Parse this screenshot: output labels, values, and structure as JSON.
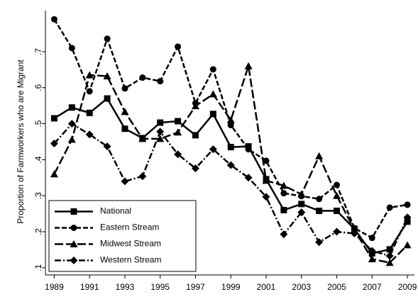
{
  "chart_data": {
    "type": "line",
    "y_label": "Proportion of Farmworkers who are Migrant",
    "x": [
      1989,
      1990,
      1991,
      1992,
      1993,
      1994,
      1995,
      1996,
      1997,
      1998,
      1999,
      2000,
      2001,
      2002,
      2003,
      2004,
      2005,
      2006,
      2007,
      2008,
      2009
    ],
    "xlim": [
      1988.5,
      2009.4
    ],
    "xticks": [
      1989,
      1991,
      1993,
      1995,
      1997,
      1999,
      2001,
      2003,
      2005,
      2007,
      2009
    ],
    "ylim": [
      0.08,
      0.814
    ],
    "yticks": [
      {
        "value": 0.1,
        "label": ".1"
      },
      {
        "value": 0.2,
        "label": ".2"
      },
      {
        "value": 0.3,
        "label": ".3"
      },
      {
        "value": 0.4,
        "label": ".4"
      },
      {
        "value": 0.5,
        "label": ".5"
      },
      {
        "value": 0.6,
        "label": ".6"
      },
      {
        "value": 0.7,
        "label": ".7"
      }
    ],
    "legend_position": "lower left",
    "series": [
      {
        "name": "National",
        "color": "#000000",
        "dash": "solid",
        "marker": "square",
        "values": [
          0.515,
          0.545,
          0.53,
          0.57,
          0.486,
          0.46,
          0.503,
          0.507,
          0.468,
          0.527,
          0.435,
          0.437,
          0.346,
          0.26,
          0.277,
          0.258,
          0.258,
          0.208,
          0.14,
          0.151,
          0.228
        ]
      },
      {
        "name": "Eastern Stream",
        "color": "#000000",
        "dash": "dashed",
        "marker": "circle",
        "values": [
          0.79,
          0.71,
          0.59,
          0.736,
          0.598,
          0.628,
          0.618,
          0.714,
          0.557,
          0.651,
          0.496,
          0.429,
          0.397,
          0.307,
          0.299,
          0.291,
          0.33,
          0.21,
          0.183,
          0.267,
          0.275
        ]
      },
      {
        "name": "Midwest Stream",
        "color": "#000000",
        "dash": "longdash",
        "marker": "triangle",
        "values": [
          0.36,
          0.456,
          0.635,
          0.632,
          0.533,
          0.458,
          0.458,
          0.476,
          0.549,
          0.582,
          0.51,
          0.66,
          0.342,
          0.328,
          0.304,
          0.41,
          0.3,
          0.205,
          0.124,
          0.114,
          0.163
        ]
      },
      {
        "name": "Western Stream",
        "color": "#000000",
        "dash": "dashdot",
        "marker": "diamond",
        "values": [
          0.445,
          0.5,
          0.47,
          0.437,
          0.34,
          0.354,
          0.478,
          0.415,
          0.376,
          0.429,
          0.385,
          0.35,
          0.297,
          0.193,
          0.254,
          0.171,
          0.2,
          0.195,
          0.147,
          0.133,
          0.24
        ]
      }
    ]
  }
}
